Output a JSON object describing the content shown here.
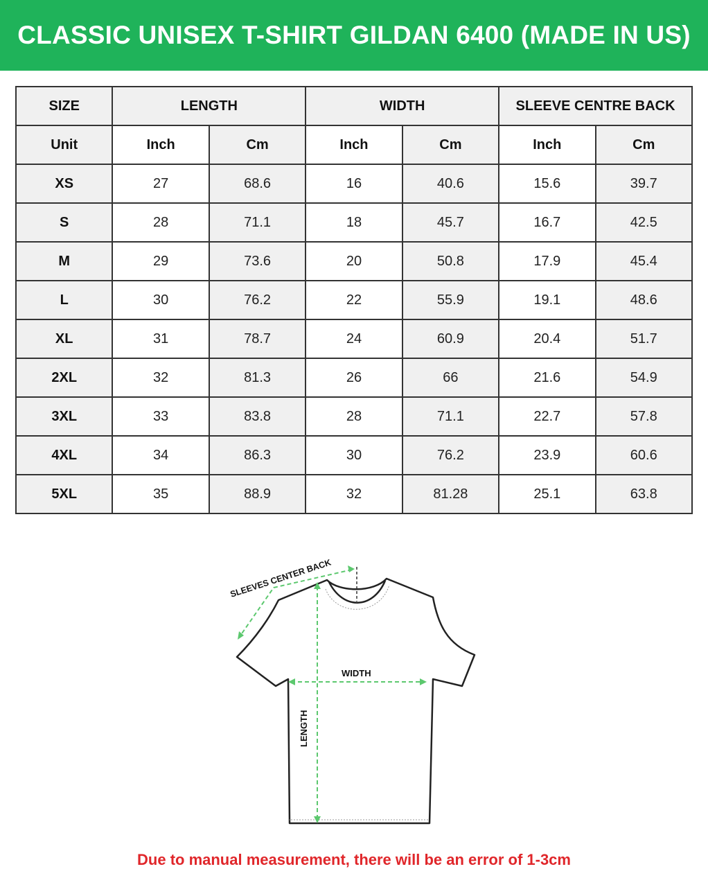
{
  "title": "CLASSIC UNISEX T-SHIRT GILDAN 6400 (MADE IN US)",
  "table": {
    "header": [
      "SIZE",
      "LENGTH",
      "WIDTH",
      "SLEEVE CENTRE BACK"
    ],
    "units": [
      "Unit",
      "Inch",
      "Cm",
      "Inch",
      "Cm",
      "Inch",
      "Cm"
    ],
    "rows": [
      [
        "XS",
        "27",
        "68.6",
        "16",
        "40.6",
        "15.6",
        "39.7"
      ],
      [
        "S",
        "28",
        "71.1",
        "18",
        "45.7",
        "16.7",
        "42.5"
      ],
      [
        "M",
        "29",
        "73.6",
        "20",
        "50.8",
        "17.9",
        "45.4"
      ],
      [
        "L",
        "30",
        "76.2",
        "22",
        "55.9",
        "19.1",
        "48.6"
      ],
      [
        "XL",
        "31",
        "78.7",
        "24",
        "60.9",
        "20.4",
        "51.7"
      ],
      [
        "2XL",
        "32",
        "81.3",
        "26",
        "66",
        "21.6",
        "54.9"
      ],
      [
        "3XL",
        "33",
        "83.8",
        "28",
        "71.1",
        "22.7",
        "57.8"
      ],
      [
        "4XL",
        "34",
        "86.3",
        "30",
        "76.2",
        "23.9",
        "60.6"
      ],
      [
        "5XL",
        "35",
        "88.9",
        "32",
        "81.28",
        "25.1",
        "63.8"
      ]
    ]
  },
  "diagram": {
    "sleeve_label": "SLEEVES CENTER BACK",
    "width_label": "WIDTH",
    "length_label": "LENGTH"
  },
  "note": "Due to manual measurement, there will be an error of 1-3cm",
  "colors": {
    "banner": "#1fb35a",
    "note": "#e0262a",
    "measure": "#5cc86e"
  }
}
